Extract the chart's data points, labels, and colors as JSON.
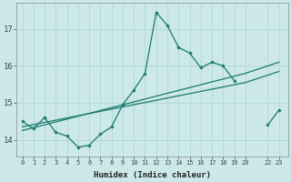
{
  "xlabel": "Humidex (Indice chaleur)",
  "bg_color": "#cce8e8",
  "grid_color": "#aad4d4",
  "line_color": "#1a7a6e",
  "x_data": [
    0,
    1,
    2,
    3,
    4,
    5,
    6,
    7,
    8,
    9,
    10,
    11,
    12,
    13,
    14,
    15,
    16,
    17,
    18,
    19,
    20,
    22,
    23
  ],
  "y_main": [
    14.5,
    14.3,
    14.6,
    14.2,
    14.1,
    13.8,
    13.85,
    14.15,
    14.35,
    14.95,
    15.35,
    15.8,
    17.45,
    17.1,
    16.5,
    16.35,
    15.95,
    16.1,
    16.0,
    15.6,
    null,
    14.4,
    14.8
  ],
  "y_line1_x": [
    0,
    20,
    22,
    23
  ],
  "y_line1_y": [
    14.35,
    15.55,
    15.75,
    15.85
  ],
  "y_line2_x": [
    0,
    20,
    22,
    23
  ],
  "y_line2_y": [
    14.25,
    15.8,
    16.0,
    16.1
  ],
  "ylim": [
    13.55,
    17.7
  ],
  "yticks": [
    14,
    15,
    16,
    17
  ],
  "xlim": [
    -0.5,
    23.8
  ],
  "xtick_positions": [
    0,
    1,
    2,
    3,
    4,
    5,
    6,
    7,
    8,
    9,
    10,
    11,
    12,
    13,
    14,
    15,
    16,
    17,
    18,
    19,
    20,
    22,
    23
  ],
  "xtick_labels": [
    "0",
    "1",
    "2",
    "3",
    "4",
    "5",
    "6",
    "7",
    "8",
    "9",
    "10",
    "11",
    "12",
    "13",
    "14",
    "15",
    "16",
    "17",
    "18",
    "19",
    "20",
    "22",
    "23"
  ]
}
